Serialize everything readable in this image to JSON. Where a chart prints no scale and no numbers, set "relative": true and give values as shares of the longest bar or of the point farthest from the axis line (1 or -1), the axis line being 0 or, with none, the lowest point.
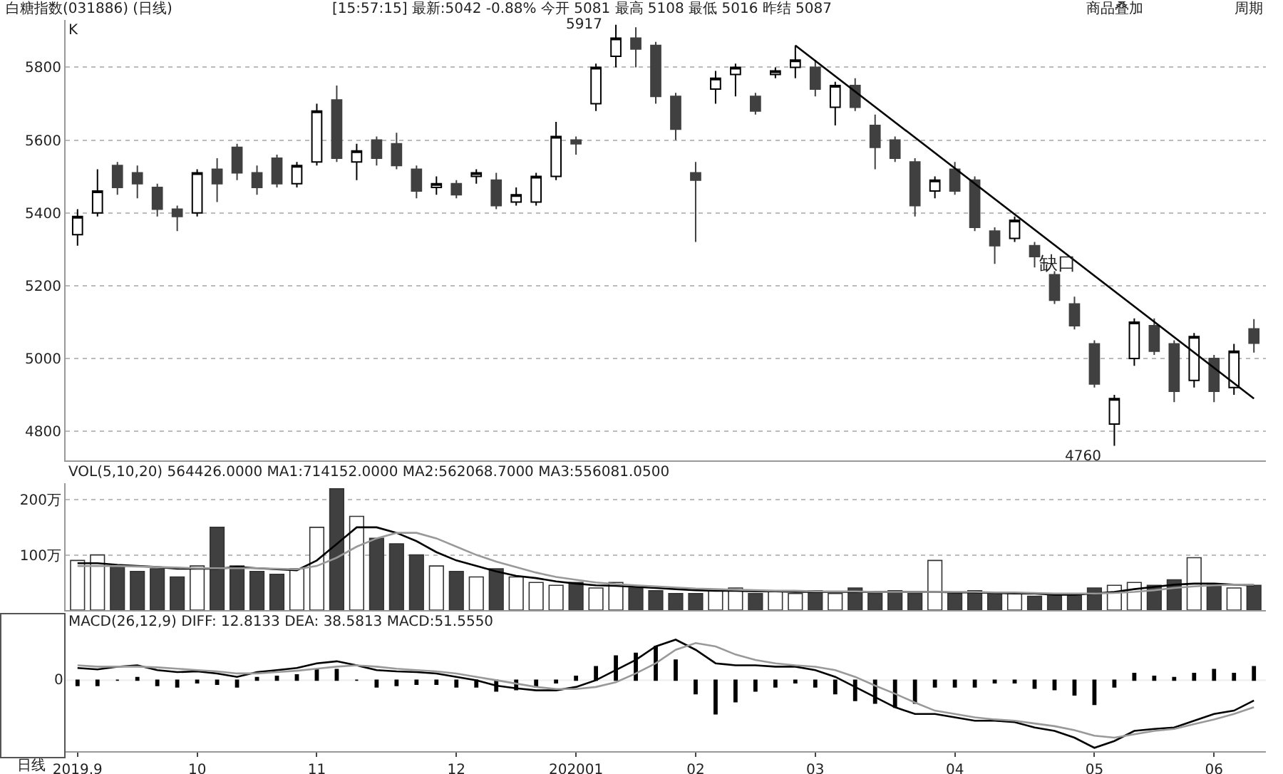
{
  "chart_data": [
    {
      "type": "candlestick",
      "title": "白糖指数(031886) (日线)",
      "subtitle": "[15:57:15] 最新:5042 -0.88% 今开 5081 最高 5108 最低 5016 昨结 5087",
      "ylabel": "K",
      "categories": [
        "2019.9",
        null,
        null,
        null,
        null,
        null,
        "10",
        null,
        null,
        null,
        null,
        null,
        "11",
        null,
        null,
        null,
        null,
        null,
        null,
        "12",
        null,
        null,
        null,
        null,
        null,
        "202001",
        null,
        null,
        null,
        null,
        null,
        "02",
        null,
        null,
        null,
        null,
        null,
        "03",
        null,
        null,
        null,
        null,
        null,
        null,
        "04",
        null,
        null,
        null,
        null,
        null,
        null,
        "05",
        null,
        null,
        null,
        null,
        null,
        "06",
        null,
        null
      ],
      "series": [
        {
          "colors": [
            "#ffffff",
            "#ffffff",
            "#404040",
            "#404040",
            "#404040",
            "#404040",
            "#ffffff",
            "#404040",
            "#404040",
            "#404040",
            "#404040",
            "#ffffff",
            "#ffffff",
            "#404040",
            "#ffffff",
            "#404040",
            "#404040",
            "#404040",
            "#ffffff",
            "#404040",
            "#ffffff",
            "#404040",
            "#ffffff",
            "#ffffff",
            "#ffffff",
            "#404040",
            "#ffffff",
            "#ffffff",
            "#404040",
            "#404040",
            "#404040",
            "#404040",
            "#ffffff",
            "#ffffff",
            "#404040",
            "#ffffff",
            "#ffffff",
            "#404040",
            "#ffffff",
            "#404040",
            "#404040",
            "#404040",
            "#404040",
            "#ffffff",
            "#404040",
            "#404040",
            "#404040",
            "#ffffff",
            "#404040",
            "#404040",
            "#404040",
            "#404040",
            "#ffffff",
            "#ffffff",
            "#404040",
            "#404040",
            "#ffffff",
            "#404040",
            "#ffffff",
            "#404040"
          ],
          "ohlc": [
            [
              5340,
              5410,
              5310,
              5390
            ],
            [
              5400,
              5520,
              5390,
              5460
            ],
            [
              5530,
              5540,
              5450,
              5470
            ],
            [
              5510,
              5530,
              5440,
              5480
            ],
            [
              5470,
              5480,
              5390,
              5410
            ],
            [
              5410,
              5420,
              5350,
              5390
            ],
            [
              5400,
              5520,
              5390,
              5510
            ],
            [
              5520,
              5550,
              5430,
              5480
            ],
            [
              5580,
              5590,
              5490,
              5510
            ],
            [
              5510,
              5530,
              5450,
              5470
            ],
            [
              5550,
              5560,
              5470,
              5480
            ],
            [
              5480,
              5540,
              5470,
              5530
            ],
            [
              5540,
              5700,
              5530,
              5680
            ],
            [
              5710,
              5750,
              5540,
              5550
            ],
            [
              5540,
              5590,
              5490,
              5570
            ],
            [
              5600,
              5610,
              5530,
              5550
            ],
            [
              5590,
              5620,
              5520,
              5530
            ],
            [
              5520,
              5530,
              5440,
              5460
            ],
            [
              5470,
              5500,
              5450,
              5480
            ],
            [
              5480,
              5490,
              5440,
              5450
            ],
            [
              5500,
              5520,
              5480,
              5510
            ],
            [
              5490,
              5510,
              5410,
              5420
            ],
            [
              5430,
              5470,
              5420,
              5450
            ],
            [
              5430,
              5510,
              5420,
              5500
            ],
            [
              5500,
              5650,
              5490,
              5610
            ],
            [
              5600,
              5610,
              5560,
              5590
            ],
            [
              5700,
              5810,
              5680,
              5800
            ],
            [
              5830,
              5917,
              5800,
              5880
            ],
            [
              5880,
              5910,
              5800,
              5850
            ],
            [
              5860,
              5870,
              5700,
              5720
            ],
            [
              5720,
              5730,
              5600,
              5630
            ],
            [
              5510,
              5540,
              5320,
              5490
            ],
            [
              5740,
              5790,
              5700,
              5770
            ],
            [
              5780,
              5810,
              5720,
              5800
            ],
            [
              5720,
              5730,
              5670,
              5680
            ],
            [
              5780,
              5800,
              5770,
              5790
            ],
            [
              5800,
              5860,
              5770,
              5820
            ],
            [
              5800,
              5820,
              5720,
              5740
            ],
            [
              5690,
              5760,
              5640,
              5750
            ],
            [
              5750,
              5770,
              5680,
              5690
            ],
            [
              5640,
              5670,
              5520,
              5580
            ],
            [
              5600,
              5610,
              5540,
              5550
            ],
            [
              5540,
              5550,
              5390,
              5420
            ],
            [
              5460,
              5500,
              5440,
              5490
            ],
            [
              5520,
              5540,
              5450,
              5460
            ],
            [
              5490,
              5500,
              5350,
              5360
            ],
            [
              5350,
              5360,
              5260,
              5310
            ],
            [
              5330,
              5390,
              5320,
              5380
            ],
            [
              5310,
              5320,
              5250,
              5280
            ],
            [
              5230,
              5240,
              5150,
              5160
            ],
            [
              5150,
              5170,
              5080,
              5090
            ],
            [
              5040,
              5050,
              4920,
              4930
            ],
            [
              4820,
              4900,
              4760,
              4890
            ],
            [
              5000,
              5110,
              4980,
              5100
            ],
            [
              5090,
              5110,
              5010,
              5020
            ],
            [
              5040,
              5050,
              4880,
              4910
            ],
            [
              4940,
              5070,
              4920,
              5060
            ],
            [
              5000,
              5010,
              4880,
              4910
            ],
            [
              4920,
              5040,
              4900,
              5020
            ],
            [
              5081,
              5108,
              5016,
              5042
            ]
          ]
        },
        {
          "type": "line",
          "color": "#000000",
          "values": [
            null,
            null,
            null,
            null,
            null,
            null,
            null,
            null,
            null,
            null,
            null,
            null,
            null,
            null,
            null,
            null,
            null,
            null,
            null,
            null,
            null,
            null,
            null,
            null,
            null,
            null,
            null,
            null,
            null,
            null,
            null,
            null,
            null,
            null,
            null,
            null,
            5860,
            null,
            null,
            null,
            null,
            null,
            null,
            null,
            null,
            null,
            null,
            null,
            null,
            null,
            null,
            null,
            null,
            null,
            null,
            null,
            null,
            null,
            null,
            4890
          ]
        }
      ],
      "ylim": [
        4720,
        5930
      ],
      "yticks": [
        4800,
        5000,
        5200,
        5400,
        5600,
        5800
      ],
      "grid": "y",
      "tick_labels": "y",
      "annotations": [
        "5917",
        "4760",
        "缺口",
        "商品叠加",
        "周期"
      ]
    },
    {
      "type": "bar",
      "title": "VOL(5,10,20) 564426.0000 MA1:714152.0000 MA2:562068.7000 MA3:556081.0500",
      "categories": [
        "2019.9",
        null,
        null,
        null,
        null,
        null,
        "10",
        null,
        null,
        null,
        null,
        null,
        "11",
        null,
        null,
        null,
        null,
        null,
        null,
        "12",
        null,
        null,
        null,
        null,
        null,
        "202001",
        null,
        null,
        null,
        null,
        null,
        "02",
        null,
        null,
        null,
        null,
        null,
        "03",
        null,
        null,
        null,
        null,
        null,
        null,
        "04",
        null,
        null,
        null,
        null,
        null,
        null,
        "05",
        null,
        null,
        null,
        null,
        null,
        "06",
        null,
        null
      ],
      "series": [
        {
          "values": [
            90,
            100,
            80,
            70,
            75,
            60,
            80,
            150,
            80,
            70,
            65,
            75,
            150,
            220,
            170,
            130,
            120,
            100,
            80,
            70,
            60,
            75,
            60,
            50,
            45,
            50,
            40,
            50,
            40,
            35,
            30,
            30,
            35,
            40,
            30,
            35,
            30,
            35,
            30,
            40,
            30,
            35,
            30,
            90,
            30,
            35,
            30,
            30,
            25,
            30,
            30,
            40,
            45,
            50,
            45,
            55,
            95,
            45,
            40,
            45
          ],
          "colors": [
            "#ffffff",
            "#ffffff",
            "#404040",
            "#404040",
            "#404040",
            "#404040",
            "#ffffff",
            "#404040",
            "#404040",
            "#404040",
            "#404040",
            "#ffffff",
            "#ffffff",
            "#404040",
            "#ffffff",
            "#404040",
            "#404040",
            "#404040",
            "#ffffff",
            "#404040",
            "#ffffff",
            "#404040",
            "#ffffff",
            "#ffffff",
            "#ffffff",
            "#404040",
            "#ffffff",
            "#ffffff",
            "#404040",
            "#404040",
            "#404040",
            "#404040",
            "#ffffff",
            "#ffffff",
            "#404040",
            "#ffffff",
            "#ffffff",
            "#404040",
            "#ffffff",
            "#404040",
            "#404040",
            "#404040",
            "#404040",
            "#ffffff",
            "#404040",
            "#404040",
            "#404040",
            "#ffffff",
            "#404040",
            "#404040",
            "#404040",
            "#404040",
            "#ffffff",
            "#ffffff",
            "#404040",
            "#404040",
            "#ffffff",
            "#404040",
            "#ffffff",
            "#404040"
          ]
        },
        {
          "type": "line",
          "color": "#000000",
          "values": [
            85,
            85,
            82,
            80,
            78,
            75,
            75,
            75,
            78,
            76,
            74,
            72,
            90,
            120,
            150,
            150,
            140,
            125,
            105,
            90,
            80,
            70,
            62,
            58,
            52,
            48,
            45,
            44,
            42,
            40,
            38,
            36,
            35,
            35,
            34,
            34,
            33,
            33,
            33,
            33,
            33,
            33,
            33,
            33,
            32,
            32,
            31,
            30,
            30,
            28,
            28,
            30,
            33,
            38,
            42,
            46,
            48,
            48,
            46,
            45
          ]
        },
        {
          "type": "line",
          "color": "#999999",
          "values": [
            80,
            80,
            80,
            79,
            78,
            77,
            76,
            76,
            76,
            76,
            75,
            74,
            80,
            95,
            115,
            130,
            140,
            140,
            130,
            115,
            100,
            88,
            78,
            68,
            60,
            55,
            50,
            47,
            45,
            43,
            41,
            39,
            38,
            37,
            36,
            35,
            35,
            34,
            34,
            34,
            33,
            33,
            33,
            33,
            33,
            33,
            32,
            32,
            31,
            30,
            30,
            30,
            31,
            33,
            36,
            40,
            43,
            45,
            46,
            46
          ]
        }
      ],
      "ylim": [
        0,
        230
      ],
      "yticks": [
        {
          "value": 100,
          "label": "100万"
        },
        {
          "value": 200,
          "label": "200万"
        }
      ],
      "grid": "y",
      "tick_labels": "y"
    },
    {
      "type": "line",
      "title": "MACD(26,12,9) DIFF: 12.8133 DEA: 38.5813 MACD:51.5550",
      "relative": true,
      "categories": [
        "2019.9",
        null,
        null,
        null,
        null,
        null,
        "10",
        null,
        null,
        null,
        null,
        null,
        "11",
        null,
        null,
        null,
        null,
        null,
        null,
        "12",
        null,
        null,
        null,
        null,
        null,
        "202001",
        null,
        null,
        null,
        null,
        null,
        "02",
        null,
        null,
        null,
        null,
        null,
        "03",
        null,
        null,
        null,
        null,
        null,
        null,
        "04",
        null,
        null,
        null,
        null,
        null,
        null,
        "05",
        null,
        null,
        null,
        null,
        null,
        "06",
        null,
        null
      ],
      "series": [
        {
          "type": "bar",
          "color": "#000000",
          "values": [
            -0.08,
            -0.08,
            0,
            0.04,
            -0.08,
            -0.1,
            -0.04,
            -0.06,
            -0.1,
            0.04,
            0.06,
            0.08,
            0.16,
            0.16,
            0,
            -0.1,
            -0.08,
            -0.06,
            -0.06,
            -0.1,
            -0.1,
            -0.16,
            -0.14,
            -0.1,
            -0.04,
            0.06,
            0.2,
            0.36,
            0.4,
            0.5,
            0.3,
            -0.2,
            -0.5,
            -0.32,
            -0.16,
            -0.1,
            -0.04,
            -0.1,
            -0.2,
            -0.3,
            -0.34,
            -0.4,
            -0.34,
            -0.1,
            -0.1,
            -0.1,
            -0.04,
            -0.04,
            -0.12,
            -0.14,
            -0.22,
            -0.36,
            -0.1,
            0.1,
            0.06,
            0.04,
            0.1,
            0.16,
            0.1,
            0.2
          ]
        },
        {
          "color": "#000000",
          "values": [
            0.18,
            0.16,
            0.2,
            0.22,
            0.15,
            0.12,
            0.13,
            0.1,
            0.05,
            0.12,
            0.15,
            0.18,
            0.25,
            0.28,
            0.22,
            0.15,
            0.13,
            0.12,
            0.1,
            0.05,
            0,
            -0.08,
            -0.12,
            -0.15,
            -0.15,
            -0.1,
            0,
            0.15,
            0.3,
            0.5,
            0.6,
            0.45,
            0.25,
            0.22,
            0.22,
            0.2,
            0.2,
            0.15,
            0.05,
            -0.1,
            -0.25,
            -0.4,
            -0.5,
            -0.5,
            -0.55,
            -0.6,
            -0.6,
            -0.62,
            -0.7,
            -0.75,
            -0.85,
            -1,
            -0.9,
            -0.75,
            -0.72,
            -0.7,
            -0.6,
            -0.5,
            -0.45,
            -0.3
          ]
        },
        {
          "color": "#999999",
          "values": [
            0.22,
            0.2,
            0.2,
            0.2,
            0.19,
            0.17,
            0.15,
            0.13,
            0.1,
            0.1,
            0.12,
            0.14,
            0.17,
            0.2,
            0.22,
            0.2,
            0.17,
            0.15,
            0.13,
            0.1,
            0.05,
            0,
            -0.05,
            -0.1,
            -0.13,
            -0.13,
            -0.1,
            -0.03,
            0.1,
            0.25,
            0.45,
            0.55,
            0.5,
            0.38,
            0.3,
            0.25,
            0.22,
            0.2,
            0.15,
            0.05,
            -0.08,
            -0.2,
            -0.33,
            -0.45,
            -0.5,
            -0.55,
            -0.58,
            -0.6,
            -0.64,
            -0.68,
            -0.74,
            -0.82,
            -0.85,
            -0.8,
            -0.75,
            -0.72,
            -0.65,
            -0.58,
            -0.5,
            -0.4
          ]
        }
      ],
      "ref_lines": [
        {
          "axis": "y",
          "value": 0,
          "label": "0",
          "color": "#eeeeee"
        }
      ],
      "annotations": [
        "日线"
      ]
    }
  ]
}
